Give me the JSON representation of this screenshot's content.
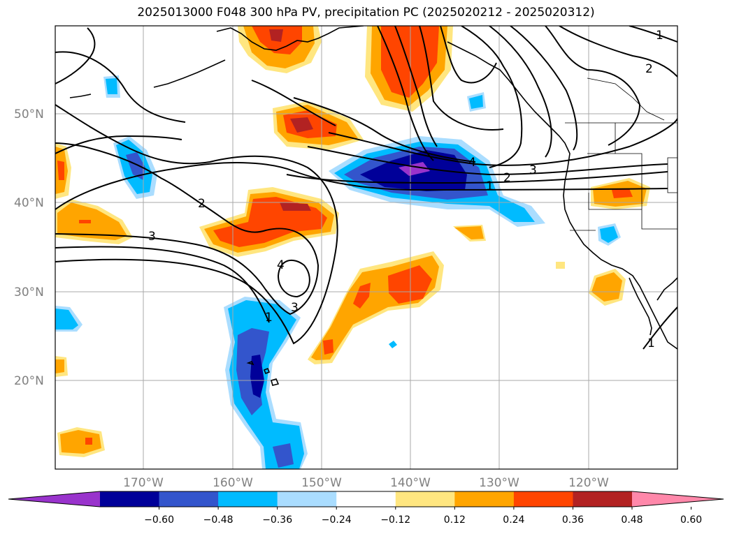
{
  "title": "2025013000 F048 300 hPa PV, precipitation PC (2025020212 - 2025020312)",
  "lat_labels": [
    "50°N",
    "40°N",
    "30°N",
    "20°N"
  ],
  "lon_labels": [
    "170°W",
    "160°W",
    "150°W",
    "140°W",
    "130°W",
    "120°W"
  ],
  "colorbar": {
    "tick_labels": [
      "−0.60",
      "−0.48",
      "−0.36",
      "−0.24",
      "−0.12",
      "0.12",
      "0.24",
      "0.36",
      "0.48",
      "0.60"
    ],
    "colors": [
      "#9933cc",
      "#000099",
      "#3355cc",
      "#00bbff",
      "#aaddff",
      "#ffffff",
      "#ffe680",
      "#ffa500",
      "#ff4500",
      "#b22222",
      "#ff88aa"
    ],
    "extend": "both"
  },
  "contour_labels": [
    "1",
    "2",
    "3",
    "4",
    "1",
    "2",
    "3",
    "4",
    "3",
    "1",
    "2",
    "1"
  ],
  "map": {
    "projection": "plate-carree",
    "lon_range": [
      -180,
      -110
    ],
    "lat_range": [
      10,
      60
    ],
    "grid": true
  }
}
